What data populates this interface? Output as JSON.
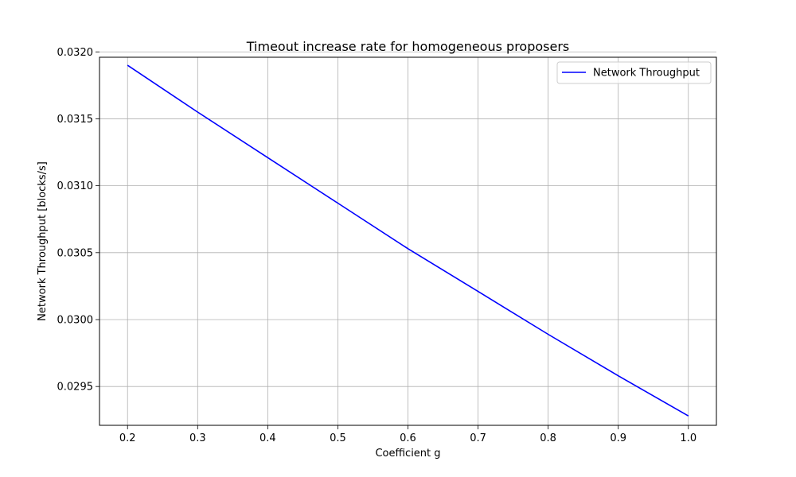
{
  "chart_data": {
    "type": "line",
    "title": "Timeout increase rate for homogeneous proposers",
    "xlabel": "Coefficient g",
    "ylabel": "Network Throughput [blocks/s]",
    "xlim": [
      0.16,
      1.04
    ],
    "ylim": [
      0.02921,
      0.03196
    ],
    "x_ticks": [
      0.2,
      0.3,
      0.4,
      0.5,
      0.6,
      0.7,
      0.8,
      0.9,
      1.0
    ],
    "x_tick_labels": [
      "0.2",
      "0.3",
      "0.4",
      "0.5",
      "0.6",
      "0.7",
      "0.8",
      "0.9",
      "1.0"
    ],
    "y_ticks": [
      0.0295,
      0.03,
      0.0305,
      0.031,
      0.0315,
      0.032
    ],
    "y_tick_labels": [
      "0.0295",
      "0.0300",
      "0.0305",
      "0.0310",
      "0.0315",
      "0.0320"
    ],
    "grid": true,
    "legend_position": "top-right",
    "series": [
      {
        "name": "Network Throughput",
        "color": "#0000ff",
        "x": [
          0.2,
          0.3,
          0.4,
          0.5,
          0.6,
          0.7,
          0.8,
          0.9,
          1.0
        ],
        "y": [
          0.0319,
          0.03155,
          0.03121,
          0.03087,
          0.03053,
          0.03021,
          0.02989,
          0.02958,
          0.02928
        ]
      }
    ]
  }
}
